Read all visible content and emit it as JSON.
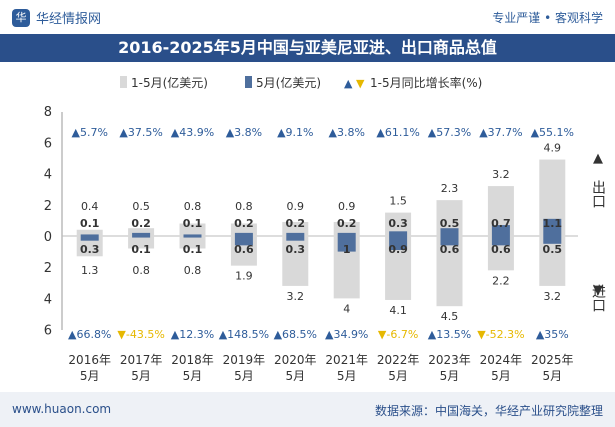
{
  "header": {
    "logo_glyph": "华",
    "brand": "华经情报网",
    "tagline": "专业严谨 • 客观科学"
  },
  "footer": {
    "url": "www.huaon.com",
    "source": "数据来源：中国海关，华经产业研究院整理"
  },
  "colors": {
    "cumulative_bar": "#d9d9d9",
    "month_bar": "#4f6f9d",
    "growth_up": "#2e5c9a",
    "growth_down": "#e6b800",
    "title_bg": "#2a4f8a",
    "footer_bg": "#eef1f6"
  },
  "chart_data": {
    "type": "bar",
    "title": "2016-2025年5月中国与亚美尼亚进、出口商品总值",
    "legend": {
      "cumulative": "1-5月(亿美元)",
      "month": "5月(亿美元)",
      "growth": "1-5月同比增长率(%)",
      "placement": "top"
    },
    "categories": [
      "2016年5月",
      "2017年5月",
      "2018年5月",
      "2019年5月",
      "2020年5月",
      "2021年5月",
      "2022年5月",
      "2023年5月",
      "2024年5月",
      "2025年5月"
    ],
    "y_ticks_export": [
      "0",
      "2",
      "4",
      "6",
      "8"
    ],
    "y_ticks_import": [
      "2",
      "4",
      "6"
    ],
    "ylim_export": [
      0,
      8
    ],
    "ylim_import": [
      0,
      6
    ],
    "side_labels": {
      "export": "出口",
      "import": "进口"
    },
    "export_cumulative": [
      0.4,
      0.5,
      0.8,
      0.8,
      0.9,
      0.9,
      1.5,
      2.3,
      3.2,
      4.9
    ],
    "export_month": [
      0.1,
      0.2,
      0.1,
      0.2,
      0.2,
      0.2,
      0.3,
      0.5,
      0.7,
      1.1
    ],
    "import_cumulative": [
      1.3,
      0.8,
      0.8,
      1.9,
      3.2,
      4,
      4.1,
      4.5,
      2.2,
      3.2
    ],
    "import_month": [
      0.3,
      0.1,
      0.1,
      0.6,
      0.3,
      1,
      0.9,
      0.6,
      0.6,
      0.5
    ],
    "export_growth": [
      "▲5.7%",
      "▲37.5%",
      "▲43.9%",
      "▲3.8%",
      "▲9.1%",
      "▲3.8%",
      "▲61.1%",
      "▲57.3%",
      "▲37.7%",
      "▲55.1%"
    ],
    "import_growth": [
      "▲66.8%",
      "▼-43.5%",
      "▲12.3%",
      "▲148.5%",
      "▲68.5%",
      "▲34.9%",
      "▼-6.7%",
      "▲13.5%",
      "▼-52.3%",
      "▲35%"
    ],
    "export_growth_dir": [
      "up",
      "up",
      "up",
      "up",
      "up",
      "up",
      "up",
      "up",
      "up",
      "up"
    ],
    "import_growth_dir": [
      "up",
      "down",
      "up",
      "up",
      "up",
      "up",
      "down",
      "up",
      "down",
      "up"
    ]
  }
}
